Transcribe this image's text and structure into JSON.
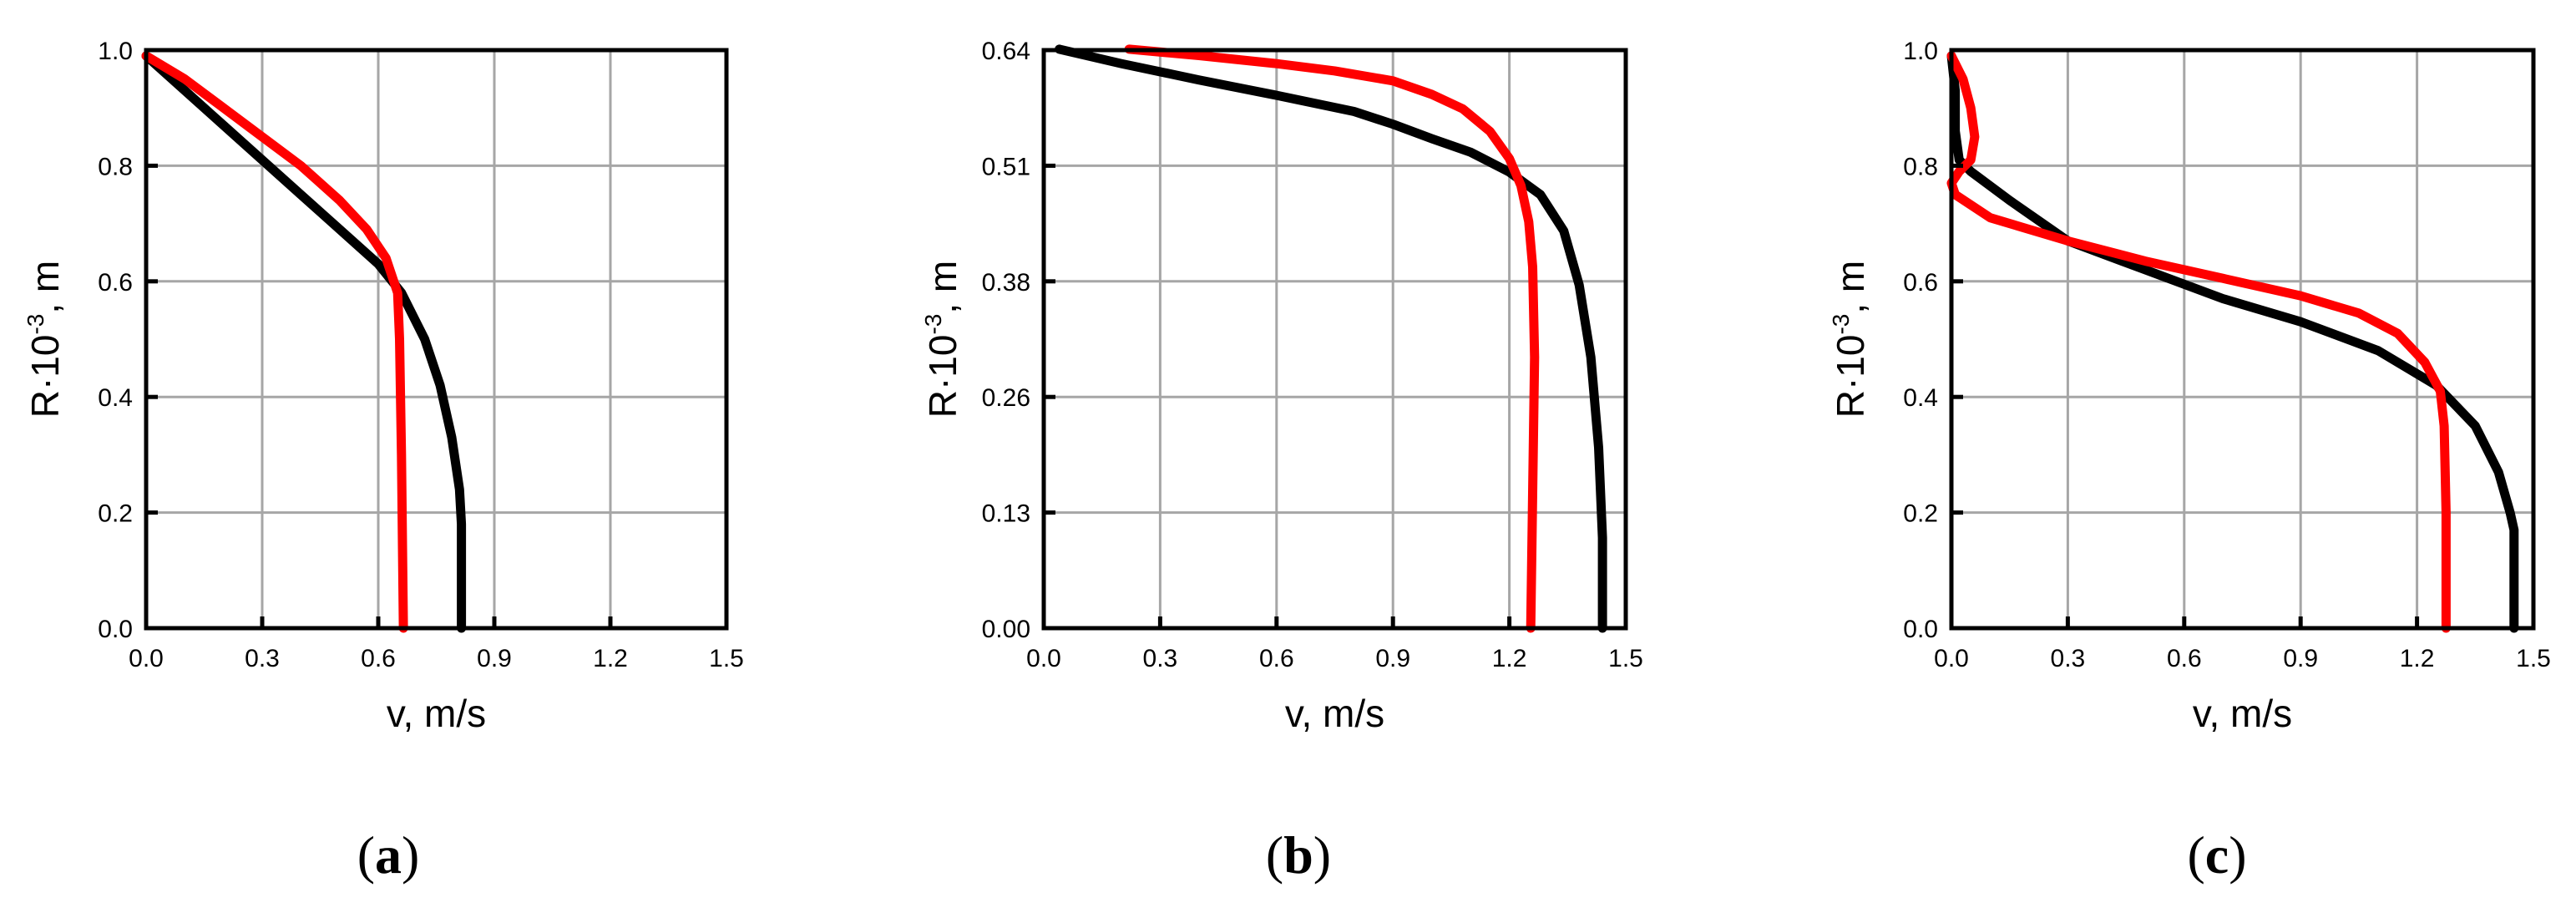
{
  "colors": {
    "black_series": "#000000",
    "red_series": "#ff0000",
    "grid": "#a6a6a6"
  },
  "chart_data": [
    {
      "type": "line",
      "panel_label": "a",
      "xlabel": "v, m/s",
      "ylabel_base": "R·10",
      "ylabel_exp": "-3",
      "ylabel_unit": ", m",
      "xlim": [
        0,
        1.5
      ],
      "ylim": [
        0,
        1.0
      ],
      "xticks": [
        0.0,
        0.3,
        0.6,
        0.9,
        1.2,
        1.5
      ],
      "xtick_labels": [
        "0.0",
        "0.3",
        "0.6",
        "0.9",
        "1.2",
        "1.5"
      ],
      "yticks": [
        0.0,
        0.2,
        0.4,
        0.6,
        0.8,
        1.0
      ],
      "ytick_labels": [
        "0.0",
        "0.2",
        "0.4",
        "0.6",
        "0.8",
        "1.0"
      ],
      "grid": true,
      "series": [
        {
          "name": "black",
          "color": "#000000",
          "points": [
            [
              0.0,
              0.99
            ],
            [
              0.1,
              0.93
            ],
            [
              0.2,
              0.87
            ],
            [
              0.3,
              0.81
            ],
            [
              0.4,
              0.75
            ],
            [
              0.5,
              0.69
            ],
            [
              0.6,
              0.63
            ],
            [
              0.66,
              0.58
            ],
            [
              0.72,
              0.5
            ],
            [
              0.76,
              0.42
            ],
            [
              0.79,
              0.33
            ],
            [
              0.81,
              0.24
            ],
            [
              0.815,
              0.18
            ],
            [
              0.815,
              0.0
            ]
          ]
        },
        {
          "name": "red",
          "color": "#ff0000",
          "points": [
            [
              0.0,
              0.99
            ],
            [
              0.1,
              0.95
            ],
            [
              0.2,
              0.9
            ],
            [
              0.3,
              0.85
            ],
            [
              0.4,
              0.8
            ],
            [
              0.5,
              0.74
            ],
            [
              0.57,
              0.69
            ],
            [
              0.62,
              0.64
            ],
            [
              0.65,
              0.58
            ],
            [
              0.655,
              0.5
            ],
            [
              0.66,
              0.3
            ],
            [
              0.665,
              0.0
            ]
          ]
        }
      ]
    },
    {
      "type": "line",
      "panel_label": "b",
      "xlabel": "v, m/s",
      "ylabel_base": "R·10",
      "ylabel_exp": "-3",
      "ylabel_unit": ", m",
      "xlim": [
        0,
        1.5
      ],
      "ylim": [
        0,
        0.64
      ],
      "xticks": [
        0.0,
        0.3,
        0.6,
        0.9,
        1.2,
        1.5
      ],
      "xtick_labels": [
        "0.0",
        "0.3",
        "0.6",
        "0.9",
        "1.2",
        "1.5"
      ],
      "yticks": [
        0.0,
        0.128,
        0.256,
        0.384,
        0.512,
        0.64
      ],
      "ytick_labels": [
        "0.00",
        "0.13",
        "0.26",
        "0.38",
        "0.51",
        "0.64"
      ],
      "grid": true,
      "series": [
        {
          "name": "black",
          "color": "#000000",
          "points": [
            [
              0.04,
              0.641
            ],
            [
              0.2,
              0.625
            ],
            [
              0.4,
              0.607
            ],
            [
              0.6,
              0.59
            ],
            [
              0.8,
              0.572
            ],
            [
              0.9,
              0.558
            ],
            [
              1.0,
              0.542
            ],
            [
              1.1,
              0.527
            ],
            [
              1.2,
              0.505
            ],
            [
              1.28,
              0.48
            ],
            [
              1.34,
              0.44
            ],
            [
              1.38,
              0.38
            ],
            [
              1.41,
              0.3
            ],
            [
              1.43,
              0.2
            ],
            [
              1.44,
              0.1
            ],
            [
              1.44,
              0.0
            ]
          ]
        },
        {
          "name": "red",
          "color": "#ff0000",
          "points": [
            [
              0.22,
              0.641
            ],
            [
              0.4,
              0.634
            ],
            [
              0.6,
              0.625
            ],
            [
              0.75,
              0.617
            ],
            [
              0.9,
              0.606
            ],
            [
              1.0,
              0.591
            ],
            [
              1.08,
              0.575
            ],
            [
              1.15,
              0.55
            ],
            [
              1.2,
              0.52
            ],
            [
              1.23,
              0.49
            ],
            [
              1.25,
              0.45
            ],
            [
              1.26,
              0.4
            ],
            [
              1.265,
              0.3
            ],
            [
              1.26,
              0.15
            ],
            [
              1.255,
              0.0
            ]
          ]
        }
      ]
    },
    {
      "type": "line",
      "panel_label": "c",
      "xlabel": "v, m/s",
      "ylabel_base": "R·10",
      "ylabel_exp": "-3",
      "ylabel_unit": ", m",
      "xlim": [
        0,
        1.5
      ],
      "ylim": [
        0,
        1.0
      ],
      "xticks": [
        0.0,
        0.3,
        0.6,
        0.9,
        1.2,
        1.5
      ],
      "xtick_labels": [
        "0.0",
        "0.3",
        "0.6",
        "0.9",
        "1.2",
        "1.5"
      ],
      "yticks": [
        0.0,
        0.2,
        0.4,
        0.6,
        0.8,
        1.0
      ],
      "ytick_labels": [
        "0.0",
        "0.2",
        "0.4",
        "0.6",
        "0.8",
        "1.0"
      ],
      "grid": true,
      "series": [
        {
          "name": "black",
          "color": "#000000",
          "points": [
            [
              0.0,
              0.99
            ],
            [
              0.01,
              0.93
            ],
            [
              0.01,
              0.86
            ],
            [
              0.02,
              0.81
            ],
            [
              0.05,
              0.79
            ],
            [
              0.15,
              0.74
            ],
            [
              0.3,
              0.67
            ],
            [
              0.5,
              0.62
            ],
            [
              0.7,
              0.57
            ],
            [
              0.9,
              0.53
            ],
            [
              1.1,
              0.48
            ],
            [
              1.25,
              0.42
            ],
            [
              1.35,
              0.35
            ],
            [
              1.41,
              0.27
            ],
            [
              1.44,
              0.2
            ],
            [
              1.45,
              0.17
            ],
            [
              1.45,
              0.0
            ]
          ]
        },
        {
          "name": "red",
          "color": "#ff0000",
          "points": [
            [
              0.0,
              0.99
            ],
            [
              0.03,
              0.95
            ],
            [
              0.05,
              0.9
            ],
            [
              0.06,
              0.85
            ],
            [
              0.05,
              0.81
            ],
            [
              0.02,
              0.79
            ],
            [
              0.0,
              0.77
            ],
            [
              0.01,
              0.75
            ],
            [
              0.1,
              0.71
            ],
            [
              0.3,
              0.67
            ],
            [
              0.5,
              0.635
            ],
            [
              0.7,
              0.605
            ],
            [
              0.9,
              0.575
            ],
            [
              1.05,
              0.545
            ],
            [
              1.15,
              0.51
            ],
            [
              1.22,
              0.46
            ],
            [
              1.26,
              0.41
            ],
            [
              1.27,
              0.35
            ],
            [
              1.275,
              0.2
            ],
            [
              1.275,
              0.0
            ]
          ]
        }
      ]
    }
  ]
}
